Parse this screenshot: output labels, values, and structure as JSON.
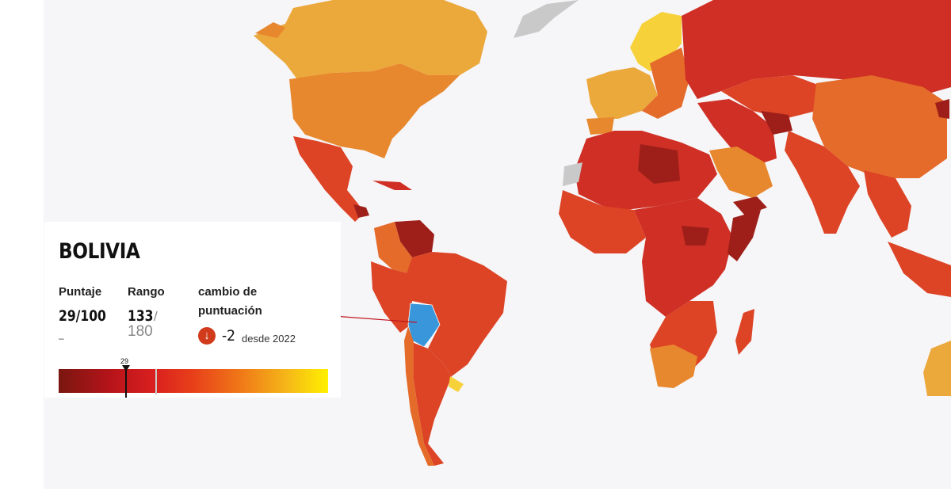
{
  "map": {
    "highlighted_country": "Bolivia",
    "highlight_color": "#3a96db",
    "colors": {
      "deep_red": "#9e1f19",
      "red": "#cf2f24",
      "red_orange": "#dd4426",
      "orange": "#e8882e",
      "light_orange": "#eba83b",
      "yellow": "#f6d13a",
      "no_data": "#c9c9c9",
      "ocean": "#f6f5f7"
    }
  },
  "card": {
    "country": "BOLIVIA",
    "score_label": "Puntaje",
    "score_value": "29/100",
    "score_sub": "–",
    "rank_label": "Rango",
    "rank_value": "133",
    "rank_slash": "/",
    "rank_total": "180",
    "change_label_1": "cambio de",
    "change_label_2": "puntuación",
    "change_icon": "arrow-down-icon",
    "change_value": "-2",
    "change_since": "desde 2022",
    "scale_marker_label": "29",
    "scale_marker_score": 29
  }
}
